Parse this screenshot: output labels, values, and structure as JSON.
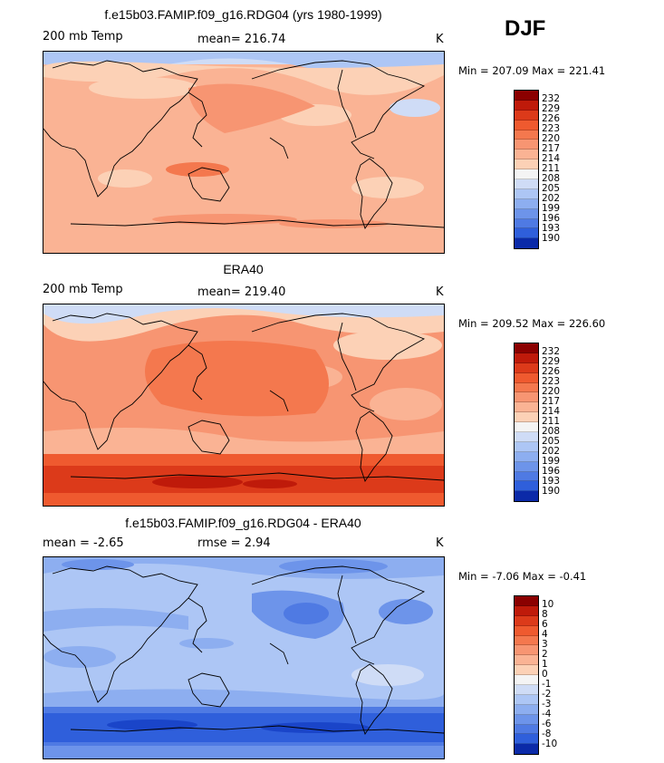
{
  "season": "DJF",
  "colors": {
    "temp_levels": [
      "#8b0000",
      "#bf1a0a",
      "#dc3a1a",
      "#ef5a2f",
      "#f4784e",
      "#f79572",
      "#fab394",
      "#fcd1b6",
      "#f4f4f4",
      "#cfdcf6",
      "#adc6f5",
      "#8daef0",
      "#6d94ea",
      "#4f7ae3",
      "#2f5fdb",
      "#1a45c9",
      "#0b2aa8"
    ]
  },
  "panels": [
    {
      "title": "f.e15b03.FAMIP.f09_g16.RDG04 (yrs 1980-1999)",
      "left_label": "200 mb Temp",
      "mid_label": "mean= 216.74",
      "unit": "K",
      "minmax": "Min = 207.09 Max = 221.41",
      "scheme": "model",
      "colorbar_ticks": [
        "232",
        "229",
        "226",
        "223",
        "220",
        "217",
        "214",
        "211",
        "208",
        "205",
        "202",
        "199",
        "196",
        "193",
        "190"
      ]
    },
    {
      "title": "ERA40",
      "left_label": "200 mb Temp",
      "mid_label": "mean= 219.40",
      "unit": "K",
      "minmax": "Min = 209.52 Max = 226.60",
      "scheme": "era",
      "colorbar_ticks": [
        "232",
        "229",
        "226",
        "223",
        "220",
        "217",
        "214",
        "211",
        "208",
        "205",
        "202",
        "199",
        "196",
        "193",
        "190"
      ]
    },
    {
      "title": "f.e15b03.FAMIP.f09_g16.RDG04 - ERA40",
      "left_label": "mean =   -2.65",
      "mid_label": "rmse =    2.94",
      "unit": "K",
      "minmax": "Min =  -7.06 Max =  -0.41",
      "scheme": "diff",
      "colorbar_ticks": [
        "10",
        "8",
        "6",
        "4",
        "3",
        "2",
        "1",
        "0",
        "-1",
        "-2",
        "-3",
        "-4",
        "-6",
        "-8",
        "-10"
      ]
    }
  ]
}
